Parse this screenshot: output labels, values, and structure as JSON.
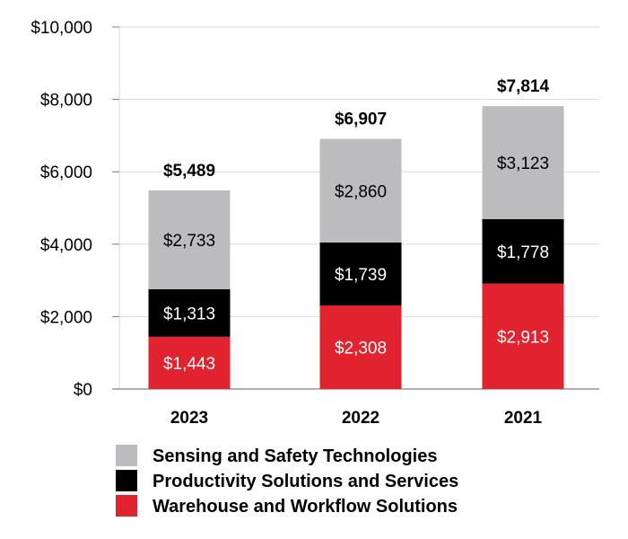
{
  "chart_data": {
    "type": "bar",
    "stacked": true,
    "categories": [
      "2023",
      "2022",
      "2021"
    ],
    "series": [
      {
        "name": "Warehouse and Workflow Solutions",
        "color": "#e0232f",
        "label_color": "#ffffff",
        "values": [
          1443,
          2308,
          2913
        ],
        "labels": [
          "$1,443",
          "$2,308",
          "$2,913"
        ]
      },
      {
        "name": "Productivity Solutions and Services",
        "color": "#000000",
        "label_color": "#ffffff",
        "values": [
          1313,
          1739,
          1778
        ],
        "labels": [
          "$1,313",
          "$1,739",
          "$1,778"
        ]
      },
      {
        "name": "Sensing and Safety Technologies",
        "color": "#bcbcbe",
        "label_color": "#000000",
        "values": [
          2733,
          2860,
          3123
        ],
        "labels": [
          "$2,733",
          "$2,860",
          "$3,123"
        ]
      }
    ],
    "totals": [
      5489,
      6907,
      7814
    ],
    "total_labels": [
      "$5,489",
      "$6,907",
      "$7,814"
    ],
    "ylim": [
      0,
      10000
    ],
    "yticks": [
      0,
      2000,
      4000,
      6000,
      8000,
      10000
    ],
    "ytick_labels": [
      "$0",
      "$2,000",
      "$4,000",
      "$6,000",
      "$8,000",
      "$10,000"
    ],
    "legend": [
      "Sensing and Safety Technologies",
      "Productivity Solutions and Services",
      "Warehouse and Workflow Solutions"
    ],
    "legend_position": "bottom",
    "title": "",
    "xlabel": "",
    "ylabel": ""
  }
}
